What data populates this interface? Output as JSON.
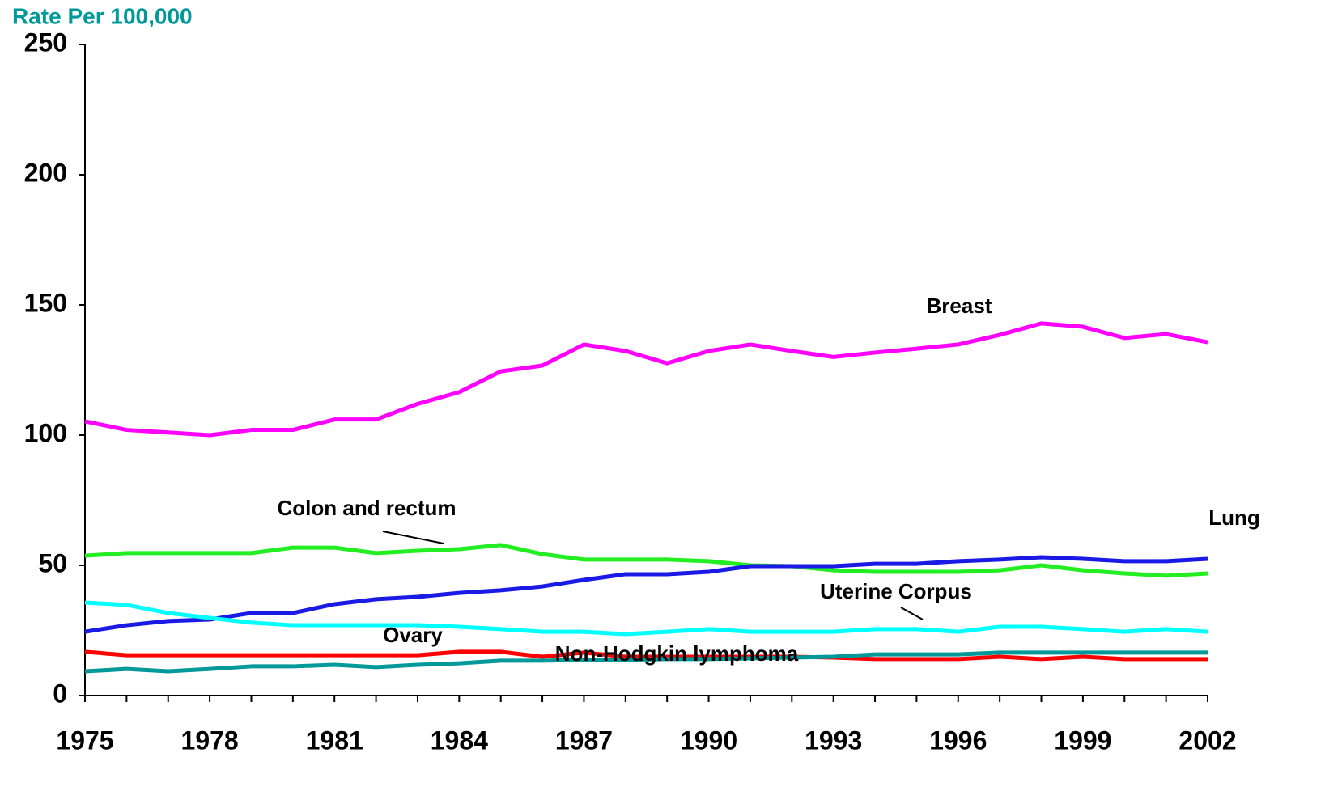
{
  "chart_data": {
    "type": "line",
    "y_label": "Rate Per 100,000",
    "x": [
      1975,
      1976,
      1977,
      1978,
      1979,
      1980,
      1981,
      1982,
      1983,
      1984,
      1985,
      1986,
      1987,
      1988,
      1989,
      1990,
      1991,
      1992,
      1993,
      1994,
      1995,
      1996,
      1997,
      1998,
      1999,
      2000,
      2001,
      2002
    ],
    "xlim": [
      1975,
      2002
    ],
    "xticks": [
      1975,
      1978,
      1981,
      1984,
      1987,
      1990,
      1993,
      1996,
      1999,
      2002
    ],
    "ylim": [
      0,
      250
    ],
    "yticks": [
      0,
      50,
      100,
      150,
      200,
      250
    ],
    "series": [
      {
        "name": "Breast",
        "color": "#ff00ff",
        "values": [
          105.3,
          102,
          101,
          100,
          102,
          102,
          106,
          106,
          112,
          116.5,
          124.5,
          126.7,
          134.8,
          132.3,
          127.6,
          132.3,
          134.8,
          132.3,
          130,
          131.7,
          133.2,
          134.8,
          138.5,
          142.9,
          141.6,
          137.3,
          138.8,
          135.7
        ]
      },
      {
        "name": "Colon and rectum",
        "color": "#22ee22",
        "values": [
          53.7,
          54.7,
          54.7,
          54.7,
          54.7,
          56.8,
          56.8,
          54.7,
          55.6,
          56.2,
          57.8,
          54.3,
          52.2,
          52.2,
          52.2,
          51.6,
          50,
          49.7,
          48.1,
          47.5,
          47.5,
          47.5,
          48.1,
          50,
          48.1,
          46.9,
          46,
          46.9
        ]
      },
      {
        "name": "Lung",
        "color": "#1a1ae6",
        "values": [
          24.5,
          27,
          28.6,
          29.2,
          31.7,
          31.7,
          35.1,
          37,
          37.9,
          39.4,
          40.4,
          41.9,
          44.4,
          46.6,
          46.6,
          47.5,
          49.7,
          49.7,
          49.7,
          50.6,
          50.6,
          51.6,
          52.2,
          53.1,
          52.5,
          51.6,
          51.6,
          52.5
        ]
      },
      {
        "name": "Uterine Corpus",
        "color": "#00ffff",
        "values": [
          35.7,
          34.8,
          31.7,
          29.8,
          28,
          27,
          27,
          27,
          27,
          26.4,
          25.5,
          24.5,
          24.5,
          23.6,
          24.5,
          25.5,
          24.5,
          24.5,
          24.5,
          25.5,
          25.5,
          24.5,
          26.4,
          26.4,
          25.5,
          24.5,
          25.5,
          24.5
        ]
      },
      {
        "name": "Ovary",
        "color": "#ff0000",
        "values": [
          16.8,
          15.5,
          15.5,
          15.5,
          15.5,
          15.5,
          15.5,
          15.5,
          15.5,
          16.8,
          16.8,
          14.9,
          16.5,
          14.9,
          14.9,
          14.9,
          14.9,
          14.9,
          14.6,
          14,
          14,
          14,
          14.9,
          14,
          14.9,
          14,
          14,
          14
        ]
      },
      {
        "name": "Non-Hodgkin lymphoma",
        "color": "#009999",
        "values": [
          9.3,
          10.2,
          9.3,
          10.2,
          11.2,
          11.2,
          11.8,
          10.9,
          11.8,
          12.4,
          13.4,
          13.4,
          13.7,
          13.7,
          14,
          14,
          14.3,
          14.6,
          14.9,
          15.8,
          15.8,
          15.8,
          16.5,
          16.5,
          16.5,
          16.5,
          16.5,
          16.5
        ]
      }
    ]
  }
}
